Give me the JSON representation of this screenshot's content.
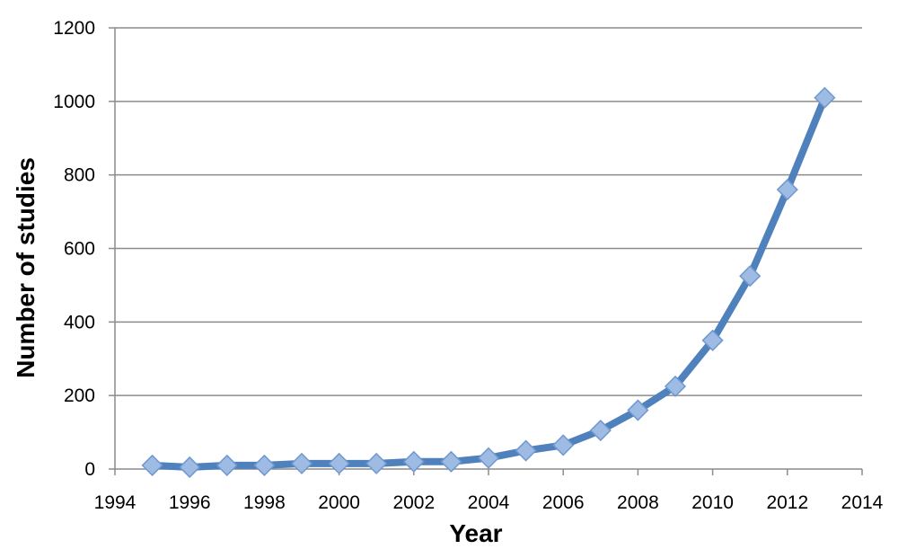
{
  "chart_data": {
    "type": "line",
    "title": "",
    "xlabel": "Year",
    "ylabel": "Number of studies",
    "xlim": [
      1994,
      2014
    ],
    "ylim": [
      0,
      1200
    ],
    "x_ticks": [
      1994,
      1996,
      1998,
      2000,
      2002,
      2004,
      2006,
      2008,
      2010,
      2012,
      2014
    ],
    "y_ticks": [
      0,
      200,
      400,
      600,
      800,
      1000,
      1200
    ],
    "grid": true,
    "legend": "none",
    "series": [
      {
        "color": "#4f81bd",
        "marker": "diamond",
        "x": [
          1995,
          1996,
          1997,
          1998,
          1999,
          2000,
          2001,
          2002,
          2003,
          2004,
          2005,
          2006,
          2007,
          2008,
          2009,
          2010,
          2011,
          2012,
          2013
        ],
        "y": [
          10,
          5,
          10,
          10,
          15,
          15,
          15,
          20,
          20,
          30,
          50,
          65,
          105,
          160,
          225,
          350,
          525,
          760,
          1010
        ]
      }
    ]
  }
}
